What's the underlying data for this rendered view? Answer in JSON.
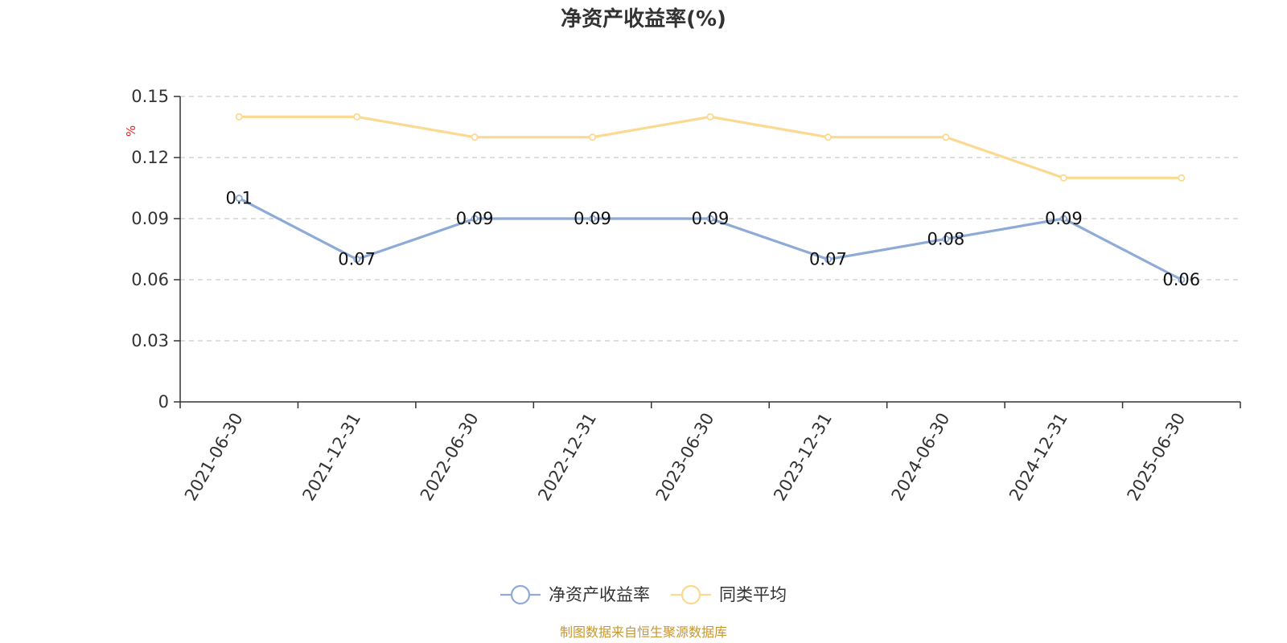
{
  "chart_data": {
    "type": "line",
    "title": "净资产收益率(%)",
    "xlabel": "",
    "ylabel": "%",
    "categories": [
      "2021-06-30",
      "2021-12-31",
      "2022-06-30",
      "2022-12-31",
      "2023-06-30",
      "2023-12-31",
      "2024-06-30",
      "2024-12-31",
      "2025-06-30"
    ],
    "series": [
      {
        "name": "净资产收益率",
        "values": [
          0.1,
          0.07,
          0.09,
          0.09,
          0.09,
          0.07,
          0.08,
          0.09,
          0.06
        ],
        "data_labels": [
          "0.1",
          "0.07",
          "0.09",
          "0.09",
          "0.09",
          "0.07",
          "0.08",
          "0.09",
          "0.06"
        ],
        "color": "#8eaad6"
      },
      {
        "name": "同类平均",
        "values": [
          0.14,
          0.14,
          0.13,
          0.13,
          0.14,
          0.13,
          0.13,
          0.11,
          0.11
        ],
        "color": "#fbd990"
      }
    ],
    "ylim": [
      0,
      0.15
    ],
    "yticks": [
      0,
      0.03,
      0.06,
      0.09,
      0.12,
      0.15
    ],
    "ytick_labels": [
      "0",
      "0.03",
      "0.06",
      "0.09",
      "0.12",
      "0.15"
    ],
    "grid": true,
    "legend_position": "bottom-center"
  },
  "source_note": "制图数据来自恒生聚源数据库",
  "colors": {
    "unit_label": "#e02020",
    "source_note": "#c8962e",
    "axis": "#333333",
    "grid": "#cccccc"
  }
}
